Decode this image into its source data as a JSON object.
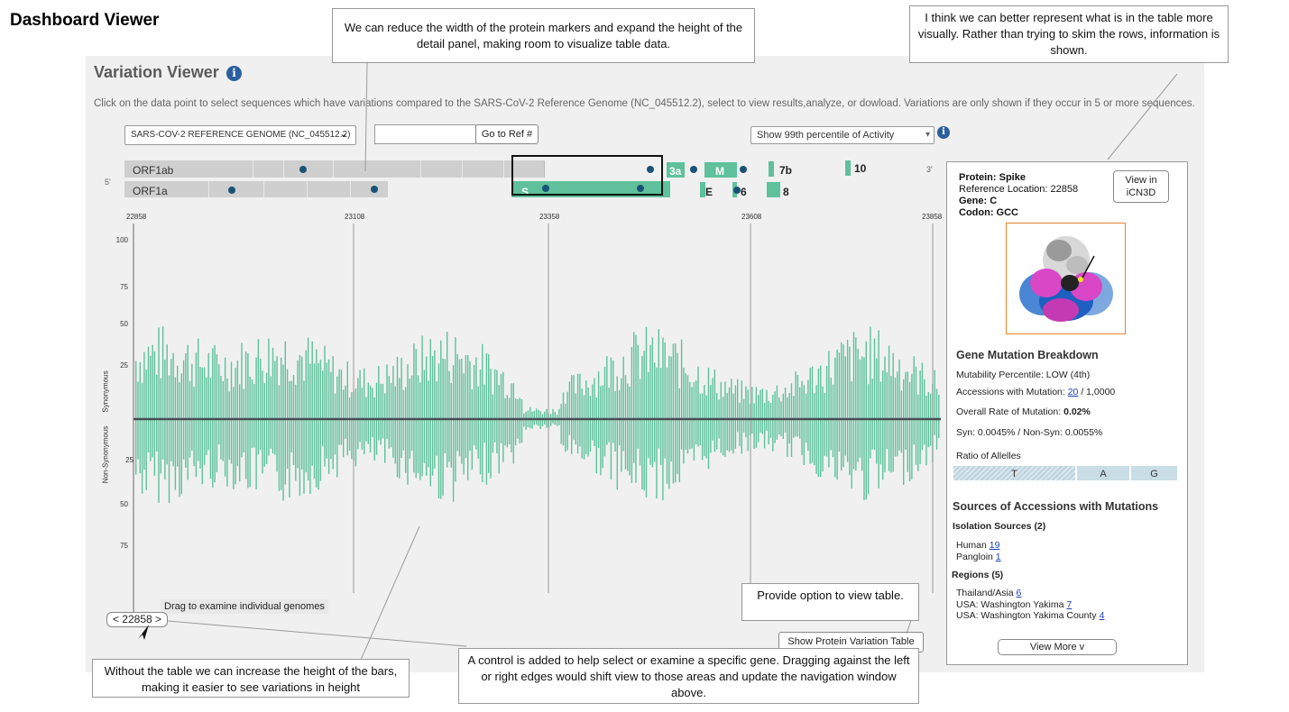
{
  "page_title": "Dashboard Viewer",
  "viewer": {
    "title": "Variation Viewer",
    "info_icon": "i",
    "description": "Click on the data point to select sequences which have variations compared to the SARS-CoV-2 Reference Genome (NC_045512.2), select to view results,analyze, or dowload. Variations are only shown if they occur in 5 or more sequences.",
    "genome_select": {
      "value": "SARS-COV-2 REFERENCE GENOME (NC_045512.2)",
      "chevron": "⌄"
    },
    "ref_input": {
      "value": ""
    },
    "go_button": "Go to Ref #",
    "percentile_select": {
      "value": "Show 99th percentile of Activity",
      "chevron": "▾"
    },
    "end_5": "5'",
    "end_3": "3'",
    "tracks": [
      {
        "label": "ORF1ab"
      },
      {
        "label": "ORF1a"
      }
    ],
    "genes": [
      "3a",
      "M",
      "7b",
      "10",
      "S",
      "E",
      "6",
      "8"
    ],
    "x_ticks": [
      "22858",
      "23108",
      "23358",
      "23608",
      "23858"
    ],
    "y_ticks_top": [
      "100",
      "75",
      "50",
      "25"
    ],
    "y_ticks_bottom": [
      "25",
      "50",
      "75"
    ],
    "y_label_top": "Synonymous",
    "y_label_bottom": "Non-Synonymous",
    "drag_label": "Drag to examine individual genomes",
    "position_control": "< 22858 >",
    "show_table_button": "Show Protein Variation Table",
    "accent_color": "#5ec19c"
  },
  "detail": {
    "protein_label": "Protein:",
    "protein": "Spike",
    "ref_location": "Reference Location: 22858",
    "gene_label": "Gene:",
    "gene": "C",
    "codon_label": "Codon:",
    "codon": "GCC",
    "view_button": "View in iCN3D",
    "breakdown_title": "Gene Mutation Breakdown",
    "mutability": "Mutability Percentile: LOW   (4th)",
    "accessions_prefix": "Accessions with Mutation: ",
    "accessions_count": "20",
    "accessions_total": " / 1,0000",
    "overall_prefix": "Overall Rate of Mutation: ",
    "overall_value": "0.02%",
    "syn_nonsyn": "Syn: 0.0045% / Non-Syn:  0.0055%",
    "ratio_title": "Ratio of Allelles",
    "alleles": [
      "T",
      "A",
      "G"
    ],
    "sources_title": "Sources of Accessions with Mutations",
    "isolation_title": "Isolation Sources (2)",
    "isolation": [
      {
        "name": "Human",
        "count": "19"
      },
      {
        "name": "Pangloin",
        "count": "1"
      }
    ],
    "regions_title": "Regions (5)",
    "regions": [
      {
        "name": "Thailand/Asia",
        "count": "6"
      },
      {
        "name": "USA: Washington Yakima",
        "count": "7"
      },
      {
        "name": "USA: Washington Yakima County",
        "count": "4"
      }
    ],
    "view_more": "View More v"
  },
  "callouts": {
    "width": "We can reduce the width of the protein markers and expand the height of the detail panel, making room to visualize table data.",
    "visual": "I think we can better represent what is in the table more visually. Rather than trying to skim the rows, information is shown.",
    "table": "Provide option to view table.",
    "height": "Without the table we can increase the height of the bars, making it easier to see variations in height",
    "control": "A control is added to help select or examine a specific gene. Dragging against the left or right edges would shift view to those areas and update the navigation window above."
  }
}
